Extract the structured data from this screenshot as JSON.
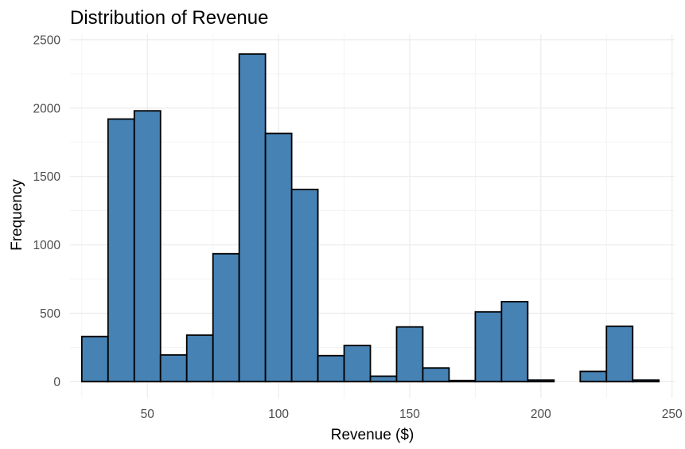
{
  "chart_data": {
    "type": "bar",
    "subtype": "histogram",
    "title": "Distribution of Revenue",
    "xlabel": "Revenue ($)",
    "ylabel": "Frequency",
    "bin_width": 10,
    "bin_start": 25,
    "bins": [
      {
        "x0": 25,
        "x1": 35,
        "count": 330
      },
      {
        "x0": 35,
        "x1": 45,
        "count": 1920
      },
      {
        "x0": 45,
        "x1": 55,
        "count": 1980
      },
      {
        "x0": 55,
        "x1": 65,
        "count": 195
      },
      {
        "x0": 65,
        "x1": 75,
        "count": 340
      },
      {
        "x0": 75,
        "x1": 85,
        "count": 935
      },
      {
        "x0": 85,
        "x1": 95,
        "count": 2395
      },
      {
        "x0": 95,
        "x1": 105,
        "count": 1815
      },
      {
        "x0": 105,
        "x1": 115,
        "count": 1405
      },
      {
        "x0": 115,
        "x1": 125,
        "count": 190
      },
      {
        "x0": 125,
        "x1": 135,
        "count": 265
      },
      {
        "x0": 135,
        "x1": 145,
        "count": 40
      },
      {
        "x0": 145,
        "x1": 155,
        "count": 400
      },
      {
        "x0": 155,
        "x1": 165,
        "count": 100
      },
      {
        "x0": 165,
        "x1": 175,
        "count": 8
      },
      {
        "x0": 175,
        "x1": 185,
        "count": 510
      },
      {
        "x0": 185,
        "x1": 195,
        "count": 585
      },
      {
        "x0": 195,
        "x1": 205,
        "count": 12
      },
      {
        "x0": 205,
        "x1": 215,
        "count": 0
      },
      {
        "x0": 215,
        "x1": 225,
        "count": 75
      },
      {
        "x0": 225,
        "x1": 235,
        "count": 405
      },
      {
        "x0": 235,
        "x1": 245,
        "count": 12
      }
    ],
    "x_ticks": [
      50,
      100,
      150,
      200,
      250
    ],
    "y_ticks": [
      0,
      500,
      1000,
      1500,
      2000,
      2500
    ],
    "xlim": [
      20.5,
      251
    ],
    "ylim": [
      -120,
      2540
    ],
    "grid": true,
    "legend": false,
    "colors": {
      "bar_fill": "#4682b4",
      "bar_outline": "#000000",
      "grid": "#ebebeb",
      "tick_text": "#4d4d4d"
    }
  }
}
